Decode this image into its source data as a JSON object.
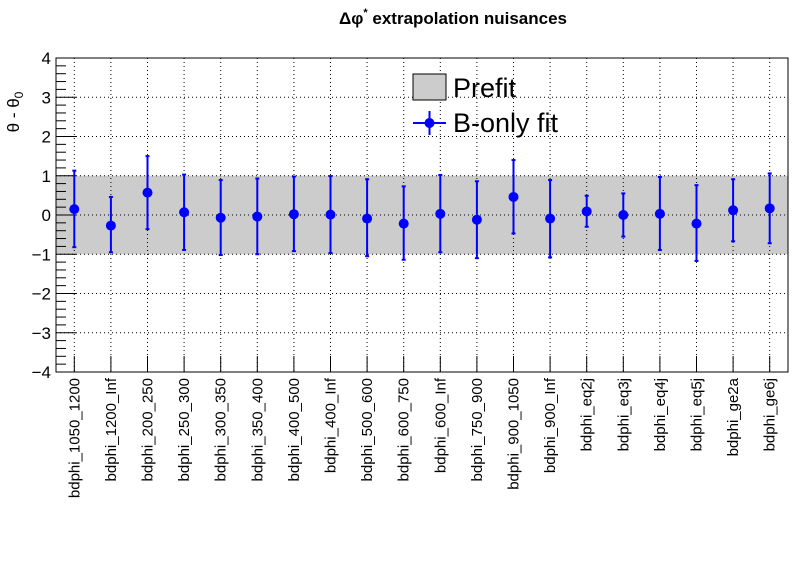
{
  "chart_data": {
    "type": "scatter",
    "title": "Δφ* extrapolation nuisances",
    "title_main": "Δφ",
    "title_sup": "*",
    "title_rest": " extrapolation nuisances",
    "ylabel": "θ - θ",
    "ylabel_sub": "0",
    "xlabel": "",
    "ylim": [
      -4,
      4
    ],
    "yticks": [
      "−4",
      "−3",
      "−2",
      "−1",
      "0",
      "1",
      "2",
      "3",
      "4"
    ],
    "grid": true,
    "legend_position": "top-center",
    "categories": [
      "bdphi_1050_1200",
      "bdphi_1200_Inf",
      "bdphi_200_250",
      "bdphi_250_300",
      "bdphi_300_350",
      "bdphi_350_400",
      "bdphi_400_500",
      "bdphi_400_Inf",
      "bdphi_500_600",
      "bdphi_600_750",
      "bdphi_600_Inf",
      "bdphi_750_900",
      "bdphi_900_1050",
      "bdphi_900_Inf",
      "bdphi_eq2j",
      "bdphi_eq3j",
      "bdphi_eq4j",
      "bdphi_eq5j",
      "bdphi_ge2a",
      "bdphi_ge6j"
    ],
    "prefit": {
      "name": "Prefit",
      "center": 0,
      "low": -1,
      "high": 1,
      "color": "#cccccc"
    },
    "series": [
      {
        "name": "B-only fit",
        "color": "#0000ff",
        "values": [
          0.15,
          -0.27,
          0.57,
          0.07,
          -0.07,
          -0.04,
          0.02,
          0.01,
          -0.09,
          -0.22,
          0.03,
          -0.12,
          0.46,
          -0.09,
          0.09,
          0.0,
          0.03,
          -0.22,
          0.12,
          0.17
        ],
        "err_low": [
          0.97,
          0.68,
          0.93,
          0.96,
          0.95,
          0.96,
          0.94,
          0.98,
          0.96,
          0.92,
          0.98,
          0.98,
          0.93,
          0.99,
          0.39,
          0.55,
          0.92,
          0.95,
          0.79,
          0.89
        ],
        "err_high": [
          0.98,
          0.73,
          0.93,
          0.96,
          0.96,
          0.97,
          0.96,
          0.98,
          1.0,
          0.95,
          0.99,
          0.98,
          0.94,
          0.98,
          0.4,
          0.55,
          0.94,
          0.98,
          0.79,
          0.89
        ]
      }
    ]
  }
}
